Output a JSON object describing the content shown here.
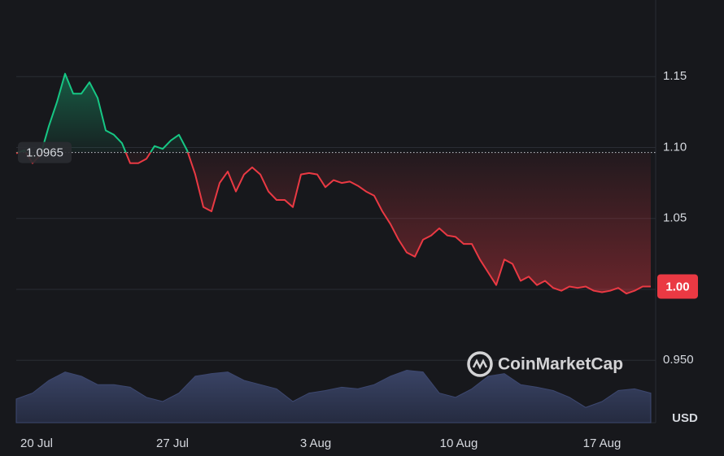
{
  "chart_data": {
    "type": "line",
    "baseline": {
      "value": 1.0965,
      "label": "1.0965"
    },
    "price_tag": {
      "value": 1.002,
      "label": "1.00"
    },
    "y_unit": "USD",
    "watermark": "CoinMarketCap",
    "up_color": "#16c784",
    "down_color": "#ea3943",
    "grid": true,
    "xlim": [
      0,
      78.6
    ],
    "xticks": [
      {
        "value": 2.5,
        "label": "20 Jul"
      },
      {
        "value": 19.2,
        "label": "27 Jul"
      },
      {
        "value": 36.8,
        "label": "3 Aug"
      },
      {
        "value": 54.4,
        "label": "10 Aug"
      },
      {
        "value": 72,
        "label": "17 Aug"
      }
    ],
    "ylim": [
      0.906,
      1.204
    ],
    "yticks": [
      {
        "value": 0.95,
        "label": "0.950"
      },
      {
        "value": 1,
        "label": "1.00"
      },
      1.05,
      {
        "value": 1.1,
        "label": "1.10"
      },
      1.15
    ],
    "y2lim": [
      0,
      500
    ],
    "series": [
      {
        "values": [
          1.096,
          1.098,
          1.089,
          1.095,
          1.115,
          1.132,
          1.152,
          1.138,
          1.138,
          1.146,
          1.135,
          1.112,
          1.109,
          1.103,
          1.089,
          1.089,
          1.092,
          1.101,
          1.099,
          1.105,
          1.109,
          1.098,
          1.081,
          1.058,
          1.055,
          1.075,
          1.083,
          1.069,
          1.081,
          1.086,
          1.081,
          1.069,
          1.063,
          1.063,
          1.058,
          1.081,
          1.082,
          1.081,
          1.072,
          1.077,
          1.075,
          1.076,
          1.073,
          1.069,
          1.066,
          1.055,
          1.046,
          1.035,
          1.026,
          1.023,
          1.035,
          1.038,
          1.043,
          1.038,
          1.037,
          1.032,
          1.032,
          1.021,
          1.012,
          1.003,
          1.021,
          1.018,
          1.006,
          1.009,
          1.003,
          1.006,
          1.001,
          0.999,
          1.002,
          1.001,
          1.002,
          0.999,
          0.998,
          0.999,
          1.001,
          0.997,
          0.999,
          1.002,
          1.002
        ]
      },
      {
        "axis": "y2",
        "color": "#2b3350",
        "values": [
          28,
          35,
          50,
          60,
          55,
          45,
          45,
          42,
          30,
          25,
          35,
          55,
          58,
          60,
          50,
          45,
          40,
          25,
          35,
          38,
          42,
          40,
          45,
          55,
          62,
          60,
          35,
          30,
          40,
          55,
          58,
          45,
          42,
          38,
          30,
          18,
          25,
          38,
          40,
          35
        ]
      }
    ]
  }
}
